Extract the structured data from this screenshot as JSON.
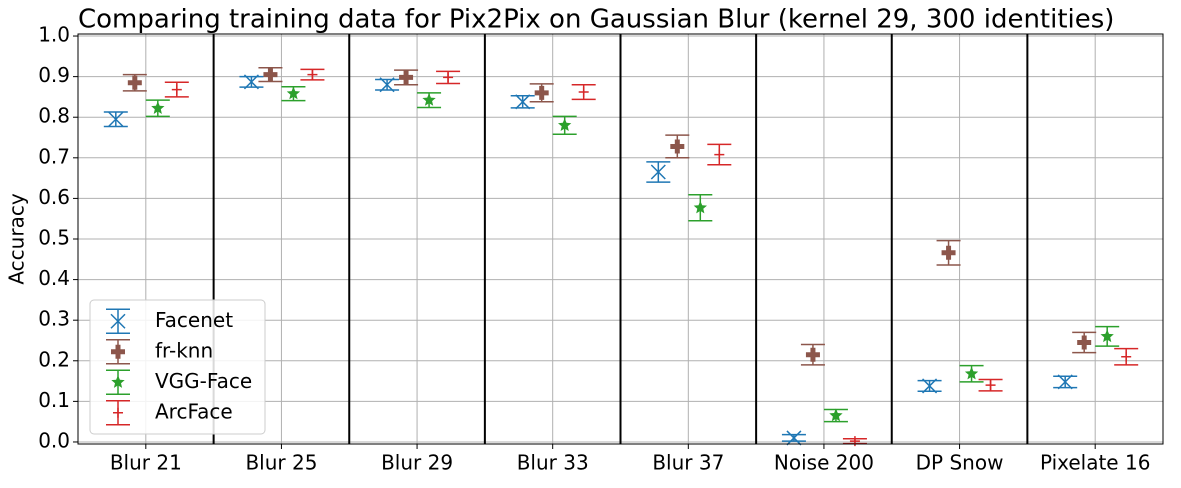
{
  "chart_data": {
    "type": "errorbar",
    "title": "Comparing training data for Pix2Pix on Gaussian Blur (kernel 29, 300 identities)",
    "y_label": "Accuracy",
    "categories": [
      "Blur 21",
      "Blur 25",
      "Blur 29",
      "Blur 33",
      "Blur 37",
      "Noise 200",
      "DP Snow",
      "Pixelate 16"
    ],
    "series": [
      {
        "name": "Facenet",
        "color": "#1f77b4",
        "marker": "x",
        "values": [
          0.795,
          0.887,
          0.88,
          0.838,
          0.665,
          0.01,
          0.138,
          0.148
        ],
        "errors": [
          0.018,
          0.013,
          0.013,
          0.015,
          0.025,
          0.008,
          0.013,
          0.014
        ]
      },
      {
        "name": "fr-knn",
        "color": "#8c564b",
        "marker": "P",
        "values": [
          0.885,
          0.905,
          0.898,
          0.86,
          0.728,
          0.215,
          0.466,
          0.245
        ],
        "errors": [
          0.02,
          0.017,
          0.018,
          0.022,
          0.028,
          0.025,
          0.03,
          0.025
        ]
      },
      {
        "name": "VGG-Face",
        "color": "#2ca02c",
        "marker": "*",
        "values": [
          0.822,
          0.858,
          0.842,
          0.78,
          0.577,
          0.065,
          0.168,
          0.26
        ],
        "errors": [
          0.02,
          0.017,
          0.018,
          0.022,
          0.032,
          0.015,
          0.02,
          0.024
        ]
      },
      {
        "name": "ArcFace",
        "color": "#d62728",
        "marker": "+",
        "values": [
          0.868,
          0.905,
          0.898,
          0.862,
          0.708,
          0.002,
          0.14,
          0.21
        ],
        "errors": [
          0.018,
          0.013,
          0.015,
          0.018,
          0.025,
          0.006,
          0.014,
          0.02
        ]
      }
    ],
    "ylim": [
      -0.005,
      1.005
    ],
    "yticks": [
      {
        "value": 0,
        "label": "0.0"
      },
      0.1,
      0.2,
      0.3,
      0.4,
      0.5,
      0.6,
      0.7,
      0.8,
      0.9,
      {
        "value": 1,
        "label": "1.0"
      }
    ],
    "grid": true,
    "legend": "lower left"
  }
}
